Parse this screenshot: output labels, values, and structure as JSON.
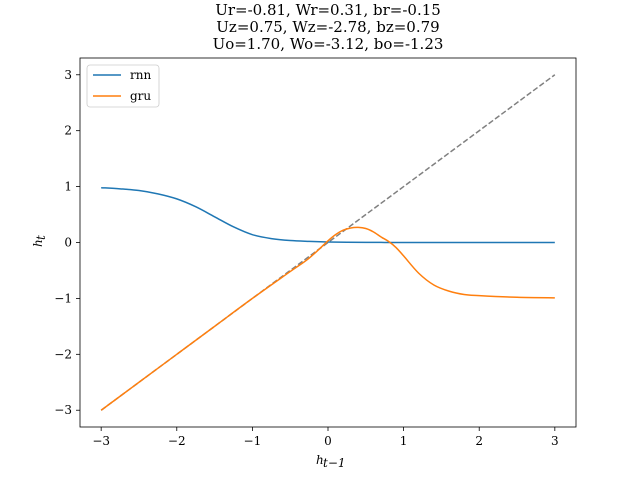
{
  "chart_data": {
    "type": "line",
    "title": [
      "Ur=-0.81, Wr=0.31, br=-0.15",
      "Uz=0.75, Wz=-2.78, bz=0.79",
      "Uo=1.70, Wo=-3.12, bo=-1.23"
    ],
    "xlabel": "h_{t-1}",
    "ylabel": "h_t",
    "xlim": [
      -3.28,
      3.28
    ],
    "ylim": [
      -3.3,
      3.3
    ],
    "xticks": [
      -3,
      -2,
      -1,
      0,
      1,
      2,
      3
    ],
    "yticks": [
      -3,
      -2,
      -1,
      0,
      1,
      2,
      3
    ],
    "tick_labels": {
      "x": [
        "−3",
        "−2",
        "−1",
        "0",
        "1",
        "2",
        "3"
      ],
      "y": [
        "−3",
        "−2",
        "−1",
        "0",
        "1",
        "2",
        "3"
      ]
    },
    "grid": false,
    "legend_position": "top-left",
    "series": [
      {
        "name": "rnn",
        "color": "#1f77b4",
        "style": "solid",
        "x": [
          -3,
          -2.75,
          -2.5,
          -2.25,
          -2,
          -1.75,
          -1.5,
          -1.25,
          -1,
          -0.75,
          -0.5,
          -0.25,
          0,
          0.25,
          0.5,
          0.75,
          1,
          1.5,
          2,
          2.5,
          3
        ],
        "y": [
          0.98,
          0.96,
          0.93,
          0.87,
          0.78,
          0.64,
          0.46,
          0.28,
          0.14,
          0.07,
          0.035,
          0.02,
          0.01,
          0.005,
          0.002,
          0.001,
          0,
          0,
          0,
          0,
          0
        ]
      },
      {
        "name": "gru",
        "color": "#ff7f0e",
        "style": "solid",
        "x": [
          -3,
          -2.5,
          -2,
          -1.5,
          -1,
          -0.5,
          -0.25,
          0,
          0.1,
          0.2,
          0.3,
          0.4,
          0.5,
          0.6,
          0.7,
          0.8,
          0.9,
          1,
          1.2,
          1.4,
          1.6,
          1.8,
          2,
          2.5,
          3
        ],
        "y": [
          -3,
          -2.5,
          -2,
          -1.5,
          -1.0,
          -0.52,
          -0.28,
          0.03,
          0.14,
          0.22,
          0.26,
          0.27,
          0.25,
          0.19,
          0.1,
          0.02,
          -0.09,
          -0.24,
          -0.55,
          -0.76,
          -0.87,
          -0.93,
          -0.95,
          -0.98,
          -0.99
        ]
      },
      {
        "name": "",
        "color": "#808080",
        "style": "dashed",
        "x": [
          -3,
          3
        ],
        "y": [
          -3,
          3
        ]
      }
    ]
  }
}
